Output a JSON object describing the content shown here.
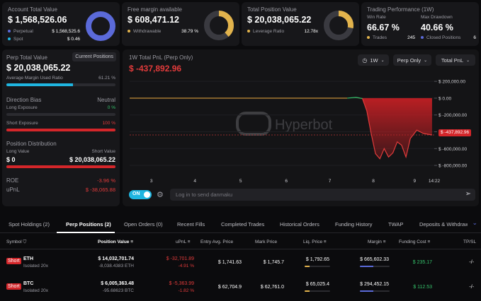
{
  "colors": {
    "accent_blue": "#5b6ad9",
    "gold": "#e2b34c",
    "red": "#e23b3b",
    "green": "#35c26b",
    "teal": "#1fb5e0"
  },
  "stats": {
    "account": {
      "title": "Account Total Value",
      "value": "$ 1,568,526.06",
      "perpetual_label": "Perpetual",
      "perpetual_value": "$ 1,568,525.6",
      "spot_label": "Spot",
      "spot_value": "$ 0.46"
    },
    "free_margin": {
      "title": "Free margin available",
      "value": "$ 608,471.12",
      "withdrawable_label": "Withdrawable",
      "withdrawable_value": "38.79 %"
    },
    "position": {
      "title": "Total Position Value",
      "value": "$ 20,038,065.22",
      "leverage_label": "Leverage Ratio",
      "leverage_value": "12.78x"
    },
    "performance": {
      "title": "Trading Performance (1W)",
      "win_rate_label": "Win Rate",
      "win_rate": "66.67 %",
      "drawdown_label": "Max Drawdown",
      "drawdown": "40.66 %",
      "trades_label": "Trades",
      "trades": "245",
      "closed_label": "Closed Positions",
      "closed": "6"
    }
  },
  "perp_panel": {
    "title": "Perp Total Value",
    "current_btn": "Current Positions",
    "value": "$ 20,038,065.22",
    "margin_label": "Average Margin Used Ratio",
    "margin_value": "61.21 %",
    "margin_fraction": 0.6121,
    "direction_label": "Direction Bias",
    "direction_value": "Neutral",
    "long_label": "Long Exposure",
    "long_value": "0 %",
    "short_label": "Short Exposure",
    "short_value": "100 %",
    "distribution_label": "Position Distribution",
    "long_value_label": "Long Value",
    "short_value_label": "Short Value",
    "long_amount": "$ 0",
    "short_amount": "$ 20,038,065.22",
    "roe_label": "ROE",
    "roe_value": "-3.96 %",
    "upnl_label": "uPnL",
    "upnl_value": "$ -38,065.88"
  },
  "chart_panel": {
    "title": "1W Total PnL (Perp Only)",
    "value": "$ -437,892.96",
    "range_btn": "1W",
    "scope_btn": "Perp Only",
    "metric_btn": "Total PnL",
    "watermark": "Hyperbot",
    "marker_label": "$ -437,892.96",
    "toggle_label": "ON",
    "danmaku_placeholder": "Log in to send danmaku"
  },
  "chart_data": {
    "type": "line",
    "x_ticks": [
      "3",
      "4",
      "5",
      "6",
      "7",
      "8",
      "9",
      "14:22"
    ],
    "y_ticks": [
      "$ 200,000.00",
      "$ 0.00",
      "$ -200,000.00",
      "$ -400,000.00",
      "$ -600,000.00",
      "$ -800,000.00"
    ],
    "ylim": [
      -900000,
      260000
    ],
    "series": [
      {
        "values": [
          [
            0,
            0
          ],
          [
            1,
            0
          ],
          [
            2,
            0
          ],
          [
            3,
            0
          ],
          [
            4,
            0
          ],
          [
            5,
            0
          ],
          [
            5.2,
            10000
          ],
          [
            5.35,
            -5000
          ],
          [
            5.45,
            -150000
          ],
          [
            5.55,
            -420000
          ],
          [
            5.65,
            -660000
          ],
          [
            5.75,
            -720000
          ],
          [
            5.85,
            -600000
          ],
          [
            5.95,
            -700000
          ],
          [
            6.05,
            -650000
          ],
          [
            6.15,
            -520000
          ],
          [
            6.25,
            -560000
          ],
          [
            6.35,
            -700000
          ],
          [
            6.45,
            -480000
          ],
          [
            6.6,
            -380000
          ],
          [
            6.75,
            -420000
          ],
          [
            6.95,
            -437893
          ]
        ]
      }
    ],
    "current_value": -437892.96
  },
  "tabs": [
    {
      "label": "Spot Holdings (2)"
    },
    {
      "label": "Perp Positions (2)"
    },
    {
      "label": "Open Orders (0)"
    },
    {
      "label": "Recent Fills"
    },
    {
      "label": "Completed Trades"
    },
    {
      "label": "Historical Orders"
    },
    {
      "label": "Funding History"
    },
    {
      "label": "TWAP"
    },
    {
      "label": "Deposits & Withdraw"
    }
  ],
  "table": {
    "headers": [
      "Symbol",
      "Position Value",
      "uPnL",
      "Entry Avg. Price",
      "Mark Price",
      "Liq. Price",
      "Margin",
      "Funding Cost",
      "TP/SL"
    ],
    "rows": [
      {
        "side": "Short",
        "symbol": "ETH",
        "leverage": "Isolated 20x",
        "value": "$ 14,032,701.74",
        "size": "-8,038.4383 ETH",
        "upnl": "$ -32,701.89",
        "upnl_pct": "-4.91 %",
        "entry": "$ 1,741.63",
        "mark": "$ 1,745.7",
        "liq": "$ 1,792.65",
        "liq_fill": 0.2,
        "margin": "$ 665,602.33",
        "margin_fill": 0.45,
        "funding": "$ 235.17",
        "tpsl": "-/-"
      },
      {
        "side": "Short",
        "symbol": "BTC",
        "leverage": "Isolated 20x",
        "value": "$ 6,005,363.48",
        "size": "-95.68623 BTC",
        "upnl": "$ -5,363.99",
        "upnl_pct": "-1.82 %",
        "entry": "$ 62,704.9",
        "mark": "$ 62,761.0",
        "liq": "$ 65,025.4",
        "liq_fill": 0.2,
        "margin": "$ 294,452.15",
        "margin_fill": 0.45,
        "funding": "$ 112.53",
        "tpsl": "-/-"
      }
    ]
  }
}
